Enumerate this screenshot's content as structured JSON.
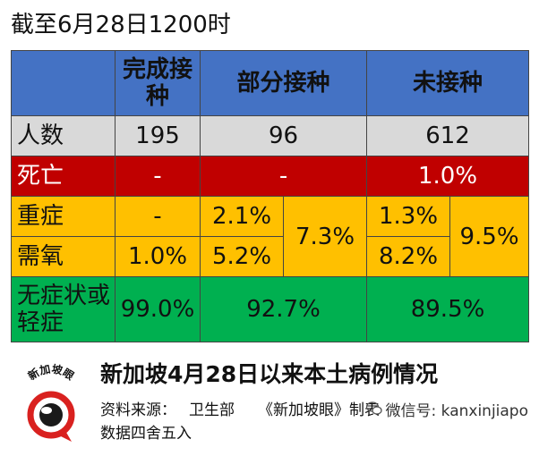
{
  "heading": "截至6月28日1200时",
  "table": {
    "headers": [
      "完成接种",
      "部分接种",
      "未接种"
    ],
    "rows": {
      "count": {
        "label": "人数",
        "complete": "195",
        "partial": "96",
        "none": "612"
      },
      "death": {
        "label": "死亡",
        "complete": "-",
        "partial": "-",
        "none": "1.0%"
      },
      "severe": {
        "label": "重症",
        "complete": "-",
        "partial": "2.1%",
        "none": "1.3%"
      },
      "oxygen": {
        "label": "需氧",
        "complete": "1.0%",
        "partial": "5.2%",
        "none": "8.2%"
      },
      "combined": {
        "partial": "7.3%",
        "none": "9.5%"
      },
      "mild": {
        "label": "无症状或轻症",
        "complete": "99.0%",
        "partial": "92.7%",
        "none": "89.5%"
      }
    }
  },
  "footer": {
    "logo_text": "新加坡眼",
    "title": "新加坡4月28日以来本土病例情况",
    "source_label": "资料来源：",
    "source_org": "卫生部",
    "made_by": "《新加坡眼》制表",
    "rounding_note": "数据四舍五入",
    "wechat": "微信号: kanxinjiapo"
  },
  "colors": {
    "header": "#4472c4",
    "count": "#d9d9d9",
    "death": "#c00000",
    "severe": "#ffc000",
    "mild": "#00b050"
  }
}
